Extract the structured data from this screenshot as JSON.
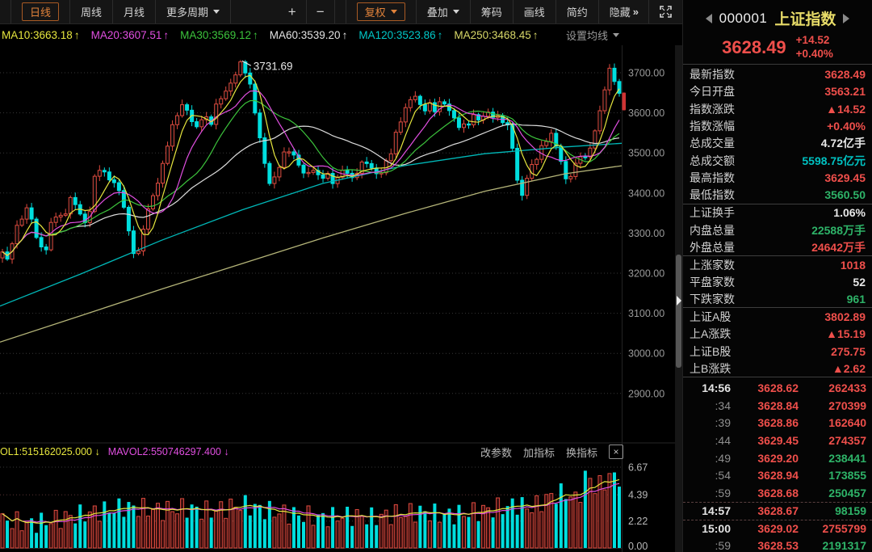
{
  "toolbar": {
    "tabs": [
      {
        "label": "日线",
        "active": true
      },
      {
        "label": "周线"
      },
      {
        "label": "月线"
      },
      {
        "label": "更多周期",
        "caret": true
      }
    ],
    "zoom_in": "+",
    "zoom_out": "−",
    "controls": [
      {
        "label": "复权",
        "caret": true,
        "accent": true
      },
      {
        "label": "叠加",
        "caret": true
      },
      {
        "label": "筹码"
      },
      {
        "label": "画线"
      },
      {
        "label": "简约"
      },
      {
        "label": "隐藏",
        "chevrons": "»"
      }
    ]
  },
  "ma_bar": {
    "items": [
      {
        "label": "MA10:3663.18",
        "arrow": "↑",
        "color": "#e6e63e"
      },
      {
        "label": "MA20:3607.51",
        "arrow": "↑",
        "color": "#e14fe1"
      },
      {
        "label": "MA30:3569.12",
        "arrow": "↑",
        "color": "#3cc43c"
      },
      {
        "label": "MA60:3539.20",
        "arrow": "↑",
        "color": "#e2e2e2"
      },
      {
        "label": "MA120:3523.86",
        "arrow": "↑",
        "color": "#00c8c8"
      },
      {
        "label": "MA250:3468.45",
        "arrow": "↑",
        "color": "#d8d868"
      }
    ],
    "settings_label": "设置均线"
  },
  "chart": {
    "annotation": "3731.69",
    "y_ticks": [
      "3700.00",
      "3600.00",
      "3500.00",
      "3400.00",
      "3300.00",
      "3200.00",
      "3100.00",
      "3000.00",
      "2900.00"
    ],
    "last_price": 3628.49,
    "colors": {
      "up": "#dd4a3e",
      "down": "#00dede",
      "ma10": "#e6e63e",
      "ma20": "#e14fe1",
      "ma30": "#3cc43c",
      "ma60": "#dcdcdc",
      "ma120": "#00b8b8",
      "ma250": "#b4b478",
      "grid": "#373737",
      "grid_red": "#5a3434",
      "marker": "#cf3434",
      "text": "#9a9a9a"
    },
    "close_waypoints": [
      [
        0,
        3270
      ],
      [
        8,
        3225
      ],
      [
        18,
        3300
      ],
      [
        28,
        3345
      ],
      [
        36,
        3365
      ],
      [
        46,
        3280
      ],
      [
        56,
        3250
      ],
      [
        66,
        3350
      ],
      [
        78,
        3335
      ],
      [
        88,
        3390
      ],
      [
        98,
        3355
      ],
      [
        108,
        3310
      ],
      [
        116,
        3430
      ],
      [
        124,
        3465
      ],
      [
        132,
        3440
      ],
      [
        142,
        3425
      ],
      [
        152,
        3385
      ],
      [
        162,
        3270
      ],
      [
        170,
        3235
      ],
      [
        180,
        3340
      ],
      [
        190,
        3395
      ],
      [
        200,
        3455
      ],
      [
        210,
        3545
      ],
      [
        220,
        3600
      ],
      [
        228,
        3625
      ],
      [
        236,
        3585
      ],
      [
        244,
        3560
      ],
      [
        252,
        3600
      ],
      [
        260,
        3565
      ],
      [
        268,
        3620
      ],
      [
        278,
        3650
      ],
      [
        286,
        3672
      ],
      [
        294,
        3710
      ],
      [
        300,
        3728
      ],
      [
        306,
        3692
      ],
      [
        312,
        3652
      ],
      [
        318,
        3575
      ],
      [
        325,
        3505
      ],
      [
        332,
        3425
      ],
      [
        340,
        3435
      ],
      [
        348,
        3482
      ],
      [
        356,
        3512
      ],
      [
        364,
        3492
      ],
      [
        372,
        3462
      ],
      [
        380,
        3442
      ],
      [
        388,
        3462
      ],
      [
        396,
        3432
      ],
      [
        404,
        3452
      ],
      [
        412,
        3425
      ],
      [
        420,
        3445
      ],
      [
        428,
        3462
      ],
      [
        436,
        3432
      ],
      [
        444,
        3462
      ],
      [
        452,
        3482
      ],
      [
        460,
        3462
      ],
      [
        468,
        3442
      ],
      [
        476,
        3465
      ],
      [
        484,
        3502
      ],
      [
        492,
        3558
      ],
      [
        500,
        3602
      ],
      [
        508,
        3632
      ],
      [
        515,
        3645
      ],
      [
        523,
        3602
      ],
      [
        531,
        3622
      ],
      [
        539,
        3607
      ],
      [
        547,
        3632
      ],
      [
        555,
        3612
      ],
      [
        563,
        3582
      ],
      [
        571,
        3562
      ],
      [
        579,
        3572
      ],
      [
        587,
        3592
      ],
      [
        595,
        3582
      ],
      [
        603,
        3602
      ],
      [
        611,
        3592
      ],
      [
        619,
        3586
      ],
      [
        627,
        3576
      ],
      [
        634,
        3525
      ],
      [
        641,
        3425
      ],
      [
        647,
        3392
      ],
      [
        653,
        3442
      ],
      [
        660,
        3472
      ],
      [
        668,
        3502
      ],
      [
        676,
        3532
      ],
      [
        683,
        3546
      ],
      [
        690,
        3512
      ],
      [
        696,
        3472
      ],
      [
        702,
        3422
      ],
      [
        708,
        3452
      ],
      [
        714,
        3472
      ],
      [
        720,
        3502
      ],
      [
        726,
        3482
      ],
      [
        732,
        3522
      ],
      [
        738,
        3562
      ],
      [
        744,
        3612
      ],
      [
        750,
        3672
      ],
      [
        755,
        3706
      ],
      [
        760,
        3692
      ],
      [
        765,
        3652
      ],
      [
        770,
        3630
      ]
    ],
    "ma120_waypoints": [
      [
        0,
        3118
      ],
      [
        100,
        3198
      ],
      [
        200,
        3282
      ],
      [
        300,
        3358
      ],
      [
        400,
        3424
      ],
      [
        500,
        3468
      ],
      [
        600,
        3498
      ],
      [
        700,
        3515
      ],
      [
        770,
        3524
      ]
    ],
    "ma250_waypoints": [
      [
        0,
        3028
      ],
      [
        100,
        3094
      ],
      [
        200,
        3160
      ],
      [
        300,
        3224
      ],
      [
        400,
        3288
      ],
      [
        500,
        3348
      ],
      [
        600,
        3404
      ],
      [
        700,
        3448
      ],
      [
        770,
        3468
      ]
    ]
  },
  "volume": {
    "indicator1": {
      "label": "OL1:515162025.000",
      "arrow": "↓",
      "color": "#e6e63e"
    },
    "indicator2": {
      "label": "MAVOL2:550746297.400",
      "arrow": "↓",
      "color": "#e14fe1"
    },
    "buttons": [
      "改参数",
      "加指标",
      "换指标"
    ],
    "close_label": "×",
    "y_ticks": [
      "6.67",
      "4.39",
      "2.22",
      "0.00"
    ],
    "waypoints": [
      [
        0,
        2.3
      ],
      [
        40,
        2.0
      ],
      [
        80,
        2.5
      ],
      [
        120,
        3.0
      ],
      [
        155,
        3.4
      ],
      [
        200,
        3.1
      ],
      [
        230,
        3.3
      ],
      [
        260,
        3.0
      ],
      [
        300,
        3.6
      ],
      [
        330,
        3.1
      ],
      [
        360,
        2.8
      ],
      [
        400,
        2.5
      ],
      [
        430,
        2.7
      ],
      [
        460,
        2.5
      ],
      [
        490,
        2.8
      ],
      [
        520,
        3.0
      ],
      [
        550,
        2.7
      ],
      [
        580,
        2.9
      ],
      [
        610,
        3.2
      ],
      [
        640,
        3.6
      ],
      [
        660,
        3.3
      ],
      [
        680,
        4.2
      ],
      [
        700,
        4.6
      ],
      [
        715,
        3.9
      ],
      [
        728,
        6.3
      ],
      [
        738,
        4.8
      ],
      [
        748,
        5.5
      ],
      [
        758,
        6.0
      ],
      [
        766,
        5.8
      ],
      [
        770,
        5.9
      ]
    ]
  },
  "panel": {
    "code": "000001",
    "name": "上证指数",
    "price": "3628.49",
    "change": "+14.52",
    "change_pct": "+0.40%",
    "rows": [
      {
        "label": "最新指数",
        "value": "3628.49",
        "color": "red"
      },
      {
        "label": "今日开盘",
        "value": "3563.21",
        "color": "red"
      },
      {
        "label": "指数涨跌",
        "value": "▲14.52",
        "color": "red"
      },
      {
        "label": "指数涨幅",
        "value": "+0.40%",
        "color": "red"
      },
      {
        "label": "总成交量",
        "value": "4.72亿手",
        "color": "white"
      },
      {
        "label": "总成交额",
        "value": "5598.75亿元",
        "color": "cyan"
      },
      {
        "label": "最高指数",
        "value": "3629.45",
        "color": "red"
      },
      {
        "label": "最低指数",
        "value": "3560.50",
        "color": "green",
        "divider": true
      },
      {
        "label": "上证换手",
        "value": "1.06%",
        "color": "white"
      },
      {
        "label": "内盘总量",
        "value": "22588万手",
        "color": "green"
      },
      {
        "label": "外盘总量",
        "value": "24642万手",
        "color": "red",
        "divider": true
      },
      {
        "label": "上涨家数",
        "value": "1018",
        "color": "red"
      },
      {
        "label": "平盘家数",
        "value": "52",
        "color": "white"
      },
      {
        "label": "下跌家数",
        "value": "961",
        "color": "green",
        "divider": true
      },
      {
        "label": "上证A股",
        "value": "3802.89",
        "color": "red"
      },
      {
        "label": "上A涨跌",
        "value": "▲15.19",
        "color": "red"
      },
      {
        "label": "上证B股",
        "value": "275.75",
        "color": "red"
      },
      {
        "label": "上B涨跌",
        "value": "▲2.62",
        "color": "red",
        "divider": true
      }
    ],
    "ticks": [
      {
        "time": "14:56",
        "price": "3628.62",
        "vol": "262433",
        "vol_color": "red",
        "strong": true
      },
      {
        "time": ":34",
        "price": "3628.84",
        "vol": "270399",
        "vol_color": "red"
      },
      {
        "time": ":39",
        "price": "3628.86",
        "vol": "162640",
        "vol_color": "red"
      },
      {
        "time": ":44",
        "price": "3629.45",
        "vol": "274357",
        "vol_color": "red"
      },
      {
        "time": ":49",
        "price": "3629.20",
        "vol": "238441",
        "vol_color": "green"
      },
      {
        "time": ":54",
        "price": "3628.94",
        "vol": "173855",
        "vol_color": "green"
      },
      {
        "time": ":59",
        "price": "3628.68",
        "vol": "250457",
        "vol_color": "green"
      },
      {
        "time": "14:57",
        "price": "3628.67",
        "vol": "98159",
        "vol_color": "green",
        "strong": true,
        "sep": true
      },
      {
        "time": "15:00",
        "price": "3629.02",
        "vol": "2755799",
        "vol_color": "red",
        "strong": true,
        "sep": true
      },
      {
        "time": ":59",
        "price": "3628.53",
        "vol": "2191317",
        "vol_color": "green"
      }
    ]
  }
}
